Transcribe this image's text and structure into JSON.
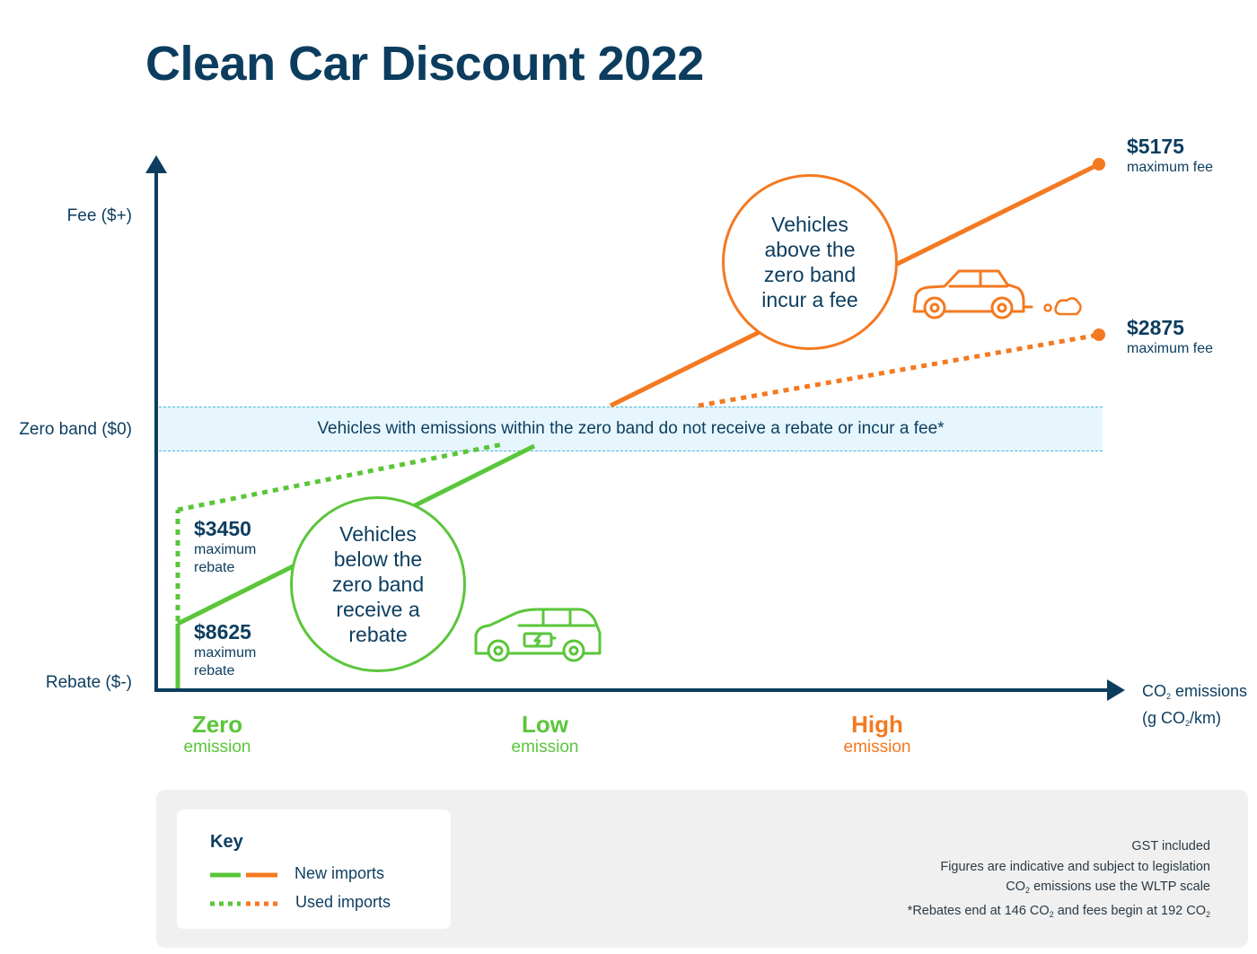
{
  "title": "Clean Car Discount 2022",
  "y_axis": {
    "fee_label": "Fee ($+)",
    "zero_label": "Zero band ($0)",
    "rebate_label": "Rebate ($-)"
  },
  "x_axis": {
    "label_line1_a": "CO",
    "label_line1_sub": "2",
    "label_line1_b": " emissions",
    "label_line2_a": "(g CO",
    "label_line2_sub": "2",
    "label_line2_b": "/km)"
  },
  "categories": [
    {
      "name": "Zero",
      "sub": "emission",
      "color": "#5ac63a"
    },
    {
      "name": "Low",
      "sub": "emission",
      "color": "#5ac63a"
    },
    {
      "name": "High",
      "sub": "emission",
      "color": "#f47920"
    }
  ],
  "annotations": {
    "max_fee_new_amount": "$5175",
    "max_fee_new_label": "maximum fee",
    "max_fee_used_amount": "$2875",
    "max_fee_used_label": "maximum fee",
    "max_rebate_used_amount": "$3450",
    "max_rebate_used_label_1": "maximum",
    "max_rebate_used_label_2": "rebate",
    "max_rebate_new_amount": "$8625",
    "max_rebate_new_label_1": "maximum",
    "max_rebate_new_label_2": "rebate"
  },
  "zero_band_text": "Vehicles with emissions within the zero band do not receive a rebate or incur a fee*",
  "bubble_fee": [
    "Vehicles",
    "above the",
    "zero band",
    "incur a fee"
  ],
  "bubble_rebate": [
    "Vehicles",
    "below the",
    "zero band",
    "receive a",
    "rebate"
  ],
  "key": {
    "title": "Key",
    "new_imports": "New imports",
    "used_imports": "Used imports"
  },
  "notes": {
    "line1": "GST included",
    "line2": "Figures are indicative and subject to legislation",
    "line3_a": "CO",
    "line3_sub": "2",
    "line3_b": " emissions use the WLTP scale",
    "line4_a": "*Rebates end at 146 CO",
    "line4_sub1": "2",
    "line4_b": " and fees begin at 192 CO",
    "line4_sub2": "2"
  },
  "colors": {
    "navy": "#0c3d5f",
    "green": "#5ac63a",
    "orange": "#f47920",
    "band": "#e6f6fc"
  },
  "icons": [
    "electric-car-icon",
    "petrol-car-icon",
    "exhaust-cloud-icon"
  ]
}
